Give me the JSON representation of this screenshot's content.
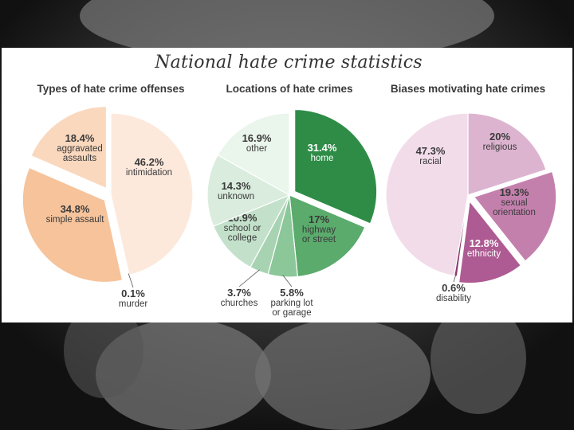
{
  "title": "National hate crime statistics",
  "chart_data": [
    {
      "type": "pie",
      "title": "Types of hate crime offenses",
      "slices": [
        {
          "value": 46.2,
          "pct": "46.2%",
          "label": "intimidation",
          "color": "#fde9dc"
        },
        {
          "value": 0.1,
          "pct": "0.1%",
          "label": "murder",
          "color": "#e08a3c"
        },
        {
          "value": 34.8,
          "pct": "34.8%",
          "label": "simple assault",
          "color": "#f6c39b"
        },
        {
          "value": 18.4,
          "pct": "18.4%",
          "label": "aggravated\nassaults",
          "color": "#fad8be"
        }
      ]
    },
    {
      "type": "pie",
      "title": "Locations of hate crimes",
      "slices": [
        {
          "value": 31.4,
          "pct": "31.4%",
          "label": "home",
          "color": "#2e8c47"
        },
        {
          "value": 17.0,
          "pct": "17%",
          "label": "highway\nor street",
          "color": "#5aab6c"
        },
        {
          "value": 5.8,
          "pct": "5.8%",
          "label": "parking lot\nor garage",
          "color": "#8cc79a"
        },
        {
          "value": 3.7,
          "pct": "3.7%",
          "label": "churches",
          "color": "#a8d3b2"
        },
        {
          "value": 10.9,
          "pct": "10.9%",
          "label": "school or\ncollege",
          "color": "#c3e1ca"
        },
        {
          "value": 14.3,
          "pct": "14.3%",
          "label": "unknown",
          "color": "#d9ecdd"
        },
        {
          "value": 16.9,
          "pct": "16.9%",
          "label": "other",
          "color": "#eaf5ec"
        }
      ]
    },
    {
      "type": "pie",
      "title": "Biases motivating hate crimes",
      "slices": [
        {
          "value": 20.0,
          "pct": "20%",
          "label": "religious",
          "color": "#dcb4d0"
        },
        {
          "value": 19.3,
          "pct": "19.3%",
          "label": "sexual\norientation",
          "color": "#c480ad"
        },
        {
          "value": 12.8,
          "pct": "12.8%",
          "label": "ethnicity",
          "color": "#ad5b92"
        },
        {
          "value": 0.6,
          "pct": "0.6%",
          "label": "disability",
          "color": "#8a3c72"
        },
        {
          "value": 47.3,
          "pct": "47.3%",
          "label": "racial",
          "color": "#f2dcea"
        }
      ]
    }
  ]
}
